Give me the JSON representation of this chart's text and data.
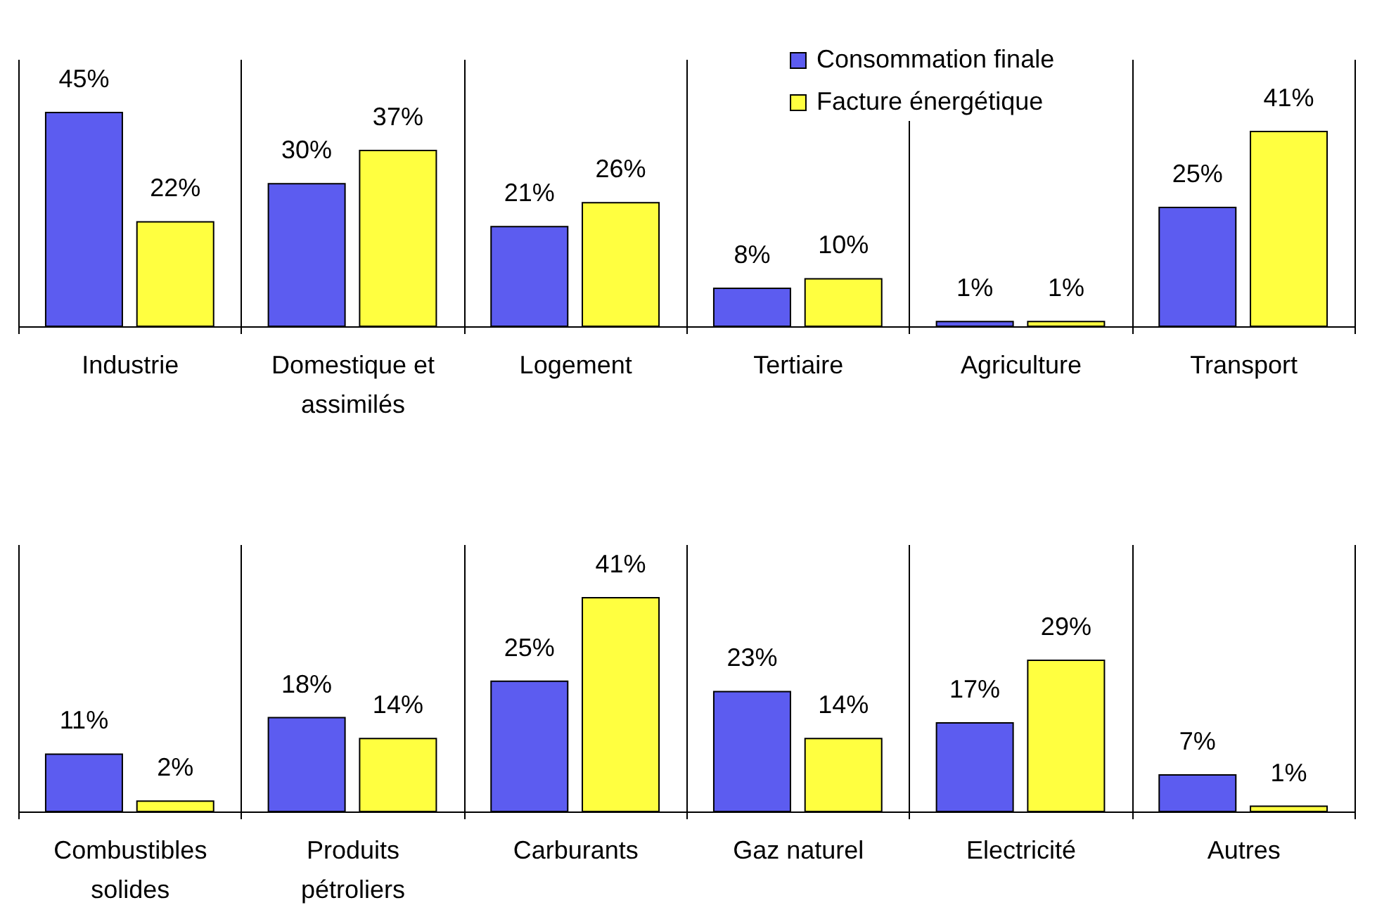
{
  "chart_data": [
    {
      "type": "bar",
      "categories": [
        "Industrie",
        "Domestique et assimilés",
        "Logement",
        "Tertiaire",
        "Agriculture",
        "Transport"
      ],
      "series": [
        {
          "name": "Consommation finale",
          "color": "#5c5cf0",
          "values": [
            45,
            30,
            21,
            8,
            1,
            25
          ],
          "value_labels": [
            "45%",
            "30%",
            "21%",
            "8%",
            "1%",
            "25%"
          ]
        },
        {
          "name": "Facture énergétique",
          "color": "#ffff40",
          "values": [
            22,
            37,
            26,
            10,
            1,
            41
          ],
          "value_labels": [
            "22%",
            "37%",
            "26%",
            "10%",
            "1%",
            "41%"
          ]
        }
      ],
      "legend": "top right",
      "grid": "x"
    },
    {
      "type": "bar",
      "categories": [
        "Combustibles solides",
        "Produits pétroliers",
        "Carburants",
        "Gaz naturel",
        "Electricité",
        "Autres"
      ],
      "series": [
        {
          "name": "Consommation finale",
          "color": "#5c5cf0",
          "values": [
            11,
            18,
            25,
            23,
            17,
            7
          ],
          "value_labels": [
            "11%",
            "18%",
            "25%",
            "23%",
            "17%",
            "7%"
          ]
        },
        {
          "name": "Facture énergétique",
          "color": "#ffff40",
          "values": [
            2,
            14,
            41,
            14,
            29,
            1
          ],
          "value_labels": [
            "2%",
            "14%",
            "41%",
            "14%",
            "29%",
            "1%"
          ]
        }
      ],
      "legend": "top left",
      "grid": "x"
    }
  ]
}
